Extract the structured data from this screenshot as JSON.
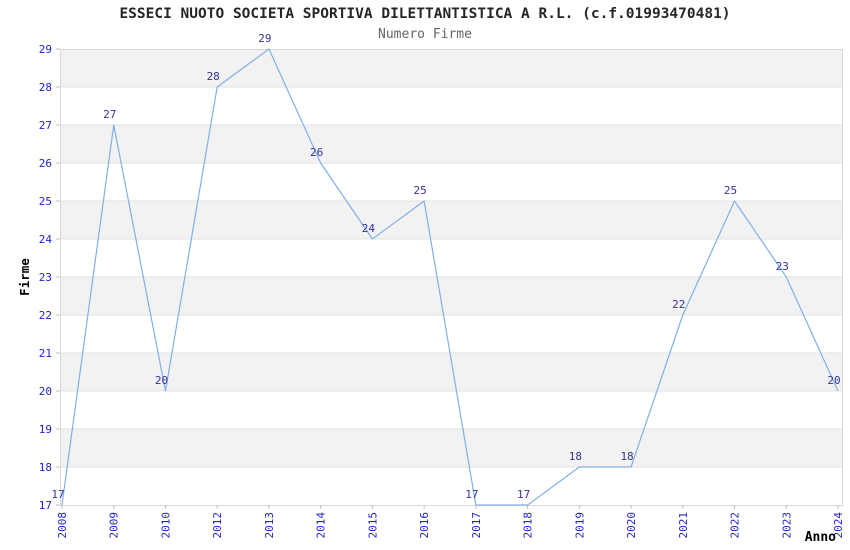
{
  "chart_data": {
    "type": "line",
    "title": "ESSECI NUOTO SOCIETA SPORTIVA DILETTANTISTICA A R.L. (c.f.01993470481)",
    "subtitle": "Numero Firme",
    "xlabel": "Anno",
    "ylabel": "Firme",
    "categories": [
      "2008",
      "2009",
      "2010",
      "2012",
      "2013",
      "2014",
      "2015",
      "2016",
      "2017",
      "2018",
      "2019",
      "2020",
      "2021",
      "2022",
      "2023",
      "2024"
    ],
    "values": [
      17,
      27,
      20,
      28,
      29,
      26,
      24,
      25,
      17,
      17,
      18,
      18,
      22,
      25,
      23,
      20
    ],
    "point_labels": [
      "17",
      "27",
      "20",
      "28",
      "29",
      "26",
      "24",
      "25",
      "17",
      "17",
      "18",
      "18",
      "22",
      "25",
      "23",
      "20"
    ],
    "yticks": [
      17,
      18,
      19,
      20,
      21,
      22,
      23,
      24,
      25,
      26,
      27,
      28,
      29
    ],
    "ylim": [
      17,
      29
    ],
    "grid": "horizontal-bands-alternating",
    "legend": "none",
    "colors": {
      "line": "#7fb0e8",
      "point_label": "#333399",
      "tick_label": "#2222cc",
      "band_gray": "#f2f2f2",
      "band_white": "#ffffff",
      "grid_line": "#e2e2e2",
      "border": "#d9d9d9",
      "tick_mark": "#bdbdbd",
      "title": "#262626",
      "subtitle": "#666666",
      "axis_label": "#000000"
    }
  }
}
